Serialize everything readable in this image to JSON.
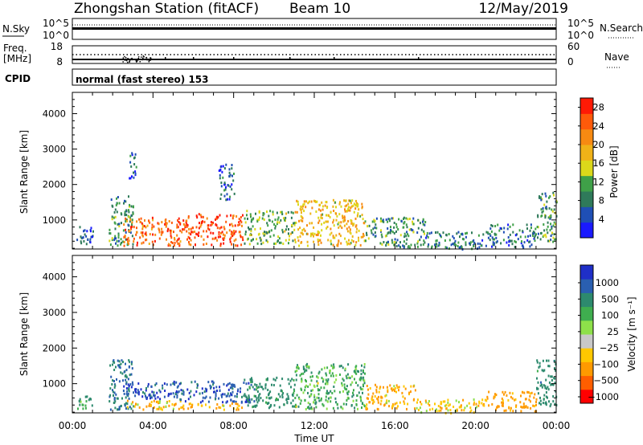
{
  "header": {
    "title": "Zhongshan Station (fitACF)",
    "beam": "Beam 10",
    "date": "12/May/2019"
  },
  "status_panels": {
    "nsky_label": "N.Sky",
    "nsky_ticks": [
      "10^5",
      "10^0"
    ],
    "nsearch_label": "N.Search",
    "nsearch_ticks": [
      "10^5",
      "10^0"
    ],
    "freq_label_line1": "Freq.",
    "freq_label_line2": "[MHz]",
    "freq_ticks": [
      "18",
      "8"
    ],
    "nave_label": "Nave",
    "nave_ticks": [
      "60",
      "0"
    ],
    "cpid_label": "CPID",
    "cpid_text": "normal (fast stereo) 153"
  },
  "colors": {
    "power_scale": [
      "#1a1aff",
      "#1f4fb5",
      "#2f7a5a",
      "#3fa048",
      "#dcd81a",
      "#f0b218",
      "#f78a12",
      "#ff5a0a",
      "#ff1a05"
    ],
    "velocity_scale": [
      "#ff0000",
      "#ff5e00",
      "#ff9a00",
      "#ffc800",
      "#c8c8c8",
      "#8ee04a",
      "#3fae4f",
      "#2d8a6e",
      "#2a5fb0",
      "#1f2fc8"
    ]
  },
  "chart_data": [
    {
      "type": "heatmap",
      "name": "power",
      "ylabel": "Slant Range [km]",
      "yticks": [
        1000,
        2000,
        3000,
        4000
      ],
      "ylim": [
        180,
        4600
      ],
      "xlim": [
        0,
        24
      ],
      "colorbar_label": "Power [dB]",
      "colorbar_ticks": [
        "4",
        "8",
        "12",
        "16",
        "20",
        "24",
        "28"
      ],
      "colorbar_range": [
        0,
        30
      ],
      "regions": [
        {
          "x": [
            0.2,
            1.0
          ],
          "r": [
            300,
            900
          ],
          "v": 6
        },
        {
          "x": [
            1.8,
            3.0
          ],
          "r": [
            300,
            1700
          ],
          "v": 9
        },
        {
          "x": [
            2.5,
            5.5
          ],
          "r": [
            300,
            1100
          ],
          "v": 24
        },
        {
          "x": [
            2.8,
            3.2
          ],
          "r": [
            2200,
            3000
          ],
          "v": 6
        },
        {
          "x": [
            5.5,
            8.5
          ],
          "r": [
            300,
            1200
          ],
          "v": 26
        },
        {
          "x": [
            7.2,
            8.0
          ],
          "r": [
            1600,
            2600
          ],
          "v": 6
        },
        {
          "x": [
            8.5,
            11.0
          ],
          "r": [
            350,
            1300
          ],
          "v": 12
        },
        {
          "x": [
            11.0,
            14.5
          ],
          "r": [
            300,
            1600
          ],
          "v": 18
        },
        {
          "x": [
            14.5,
            17.5
          ],
          "r": [
            250,
            1100
          ],
          "v": 10
        },
        {
          "x": [
            17.5,
            20.5
          ],
          "r": [
            200,
            700
          ],
          "v": 8
        },
        {
          "x": [
            20.5,
            23.0
          ],
          "r": [
            250,
            900
          ],
          "v": 7
        },
        {
          "x": [
            23.0,
            24.0
          ],
          "r": [
            400,
            1800
          ],
          "v": 10
        }
      ]
    },
    {
      "type": "heatmap",
      "name": "velocity",
      "ylabel": "Slant Range [km]",
      "xlabel": "Time UT",
      "xticks": [
        "00:00",
        "04:00",
        "08:00",
        "12:00",
        "16:00",
        "20:00",
        "00:00"
      ],
      "yticks": [
        1000,
        2000,
        3000,
        4000
      ],
      "ylim": [
        180,
        4600
      ],
      "xlim": [
        0,
        24
      ],
      "colorbar_label": "Velocity [m s⁻¹]",
      "colorbar_ticks": [
        "1000",
        "500",
        "100",
        "25",
        "−25",
        "−100",
        "−500",
        "−1000"
      ],
      "regions": [
        {
          "x": [
            0.2,
            1.0
          ],
          "r": [
            300,
            700
          ],
          "v": 100
        },
        {
          "x": [
            1.8,
            3.0
          ],
          "r": [
            300,
            1700
          ],
          "v": 500
        },
        {
          "x": [
            2.5,
            5.0
          ],
          "r": [
            600,
            1100
          ],
          "v": 1000
        },
        {
          "x": [
            2.5,
            5.5
          ],
          "r": [
            300,
            550
          ],
          "v": -100
        },
        {
          "x": [
            5.0,
            9.0
          ],
          "r": [
            500,
            1100
          ],
          "v": 800
        },
        {
          "x": [
            5.0,
            8.5
          ],
          "r": [
            300,
            480
          ],
          "v": -120
        },
        {
          "x": [
            8.5,
            11.0
          ],
          "r": [
            350,
            1200
          ],
          "v": 200
        },
        {
          "x": [
            11.0,
            14.5
          ],
          "r": [
            300,
            1600
          ],
          "v": 80
        },
        {
          "x": [
            14.5,
            17.0
          ],
          "r": [
            300,
            1000
          ],
          "v": -150
        },
        {
          "x": [
            17.0,
            20.5
          ],
          "r": [
            200,
            600
          ],
          "v": -60
        },
        {
          "x": [
            20.5,
            23.0
          ],
          "r": [
            250,
            800
          ],
          "v": -200
        },
        {
          "x": [
            23.0,
            24.0
          ],
          "r": [
            400,
            1700
          ],
          "v": 300
        }
      ]
    }
  ]
}
